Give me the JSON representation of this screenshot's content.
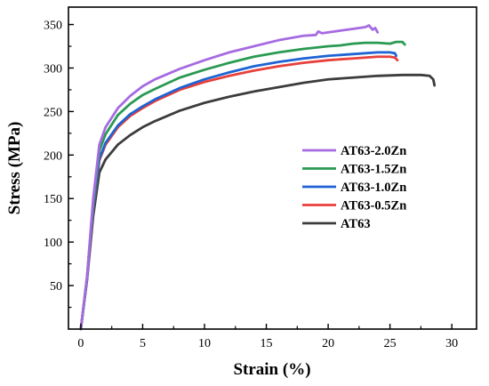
{
  "chart_data": {
    "type": "line",
    "xlabel": "Strain (%)",
    "ylabel": "Stress (MPa)",
    "xlim": [
      -1,
      32
    ],
    "ylim": [
      0,
      370
    ],
    "xticks": [
      0,
      5,
      10,
      15,
      20,
      25,
      30
    ],
    "yticks": [
      50,
      100,
      150,
      200,
      250,
      300,
      350
    ],
    "grid": false,
    "legend_position": "center-right",
    "series": [
      {
        "name": "AT63-2.0Zn",
        "color": "#a66be0",
        "points": [
          [
            0,
            0
          ],
          [
            0.5,
            60
          ],
          [
            1.0,
            150
          ],
          [
            1.5,
            212
          ],
          [
            2,
            232
          ],
          [
            3,
            254
          ],
          [
            4,
            268
          ],
          [
            5,
            279
          ],
          [
            6,
            287
          ],
          [
            8,
            299
          ],
          [
            10,
            309
          ],
          [
            12,
            318
          ],
          [
            14,
            325
          ],
          [
            16,
            332
          ],
          [
            18,
            337
          ],
          [
            19,
            338
          ],
          [
            19.2,
            342
          ],
          [
            19.5,
            340
          ],
          [
            20,
            341
          ],
          [
            21,
            343
          ],
          [
            22,
            345
          ],
          [
            23,
            347
          ],
          [
            23.3,
            349
          ],
          [
            23.6,
            344
          ],
          [
            23.8,
            346
          ],
          [
            24,
            341
          ]
        ]
      },
      {
        "name": "AT63-1.5Zn",
        "color": "#2a9a52",
        "points": [
          [
            0,
            0
          ],
          [
            0.5,
            60
          ],
          [
            1.0,
            145
          ],
          [
            1.5,
            205
          ],
          [
            2,
            224
          ],
          [
            3,
            246
          ],
          [
            4,
            259
          ],
          [
            5,
            269
          ],
          [
            6,
            276
          ],
          [
            8,
            289
          ],
          [
            10,
            298
          ],
          [
            12,
            306
          ],
          [
            14,
            313
          ],
          [
            16,
            318
          ],
          [
            18,
            322
          ],
          [
            20,
            325
          ],
          [
            21,
            326
          ],
          [
            22,
            328
          ],
          [
            23,
            329
          ],
          [
            24,
            329
          ],
          [
            25,
            328
          ],
          [
            25.5,
            330
          ],
          [
            26,
            330
          ],
          [
            26.2,
            327
          ]
        ]
      },
      {
        "name": "AT63-1.0Zn",
        "color": "#1e63d3",
        "points": [
          [
            0,
            0
          ],
          [
            0.5,
            58
          ],
          [
            1.0,
            140
          ],
          [
            1.5,
            196
          ],
          [
            2,
            214
          ],
          [
            3,
            234
          ],
          [
            4,
            247
          ],
          [
            5,
            256
          ],
          [
            6,
            264
          ],
          [
            8,
            277
          ],
          [
            10,
            287
          ],
          [
            12,
            295
          ],
          [
            14,
            302
          ],
          [
            16,
            307
          ],
          [
            18,
            311
          ],
          [
            20,
            314
          ],
          [
            22,
            316
          ],
          [
            24,
            318
          ],
          [
            25,
            318
          ],
          [
            25.4,
            317
          ],
          [
            25.5,
            314
          ]
        ]
      },
      {
        "name": "AT63-0.5Zn",
        "color": "#e8403b",
        "points": [
          [
            0,
            0
          ],
          [
            0.5,
            58
          ],
          [
            1.0,
            138
          ],
          [
            1.5,
            194
          ],
          [
            2,
            212
          ],
          [
            3,
            232
          ],
          [
            4,
            245
          ],
          [
            5,
            254
          ],
          [
            6,
            262
          ],
          [
            8,
            275
          ],
          [
            10,
            284
          ],
          [
            12,
            291
          ],
          [
            14,
            297
          ],
          [
            16,
            302
          ],
          [
            18,
            306
          ],
          [
            20,
            309
          ],
          [
            22,
            311
          ],
          [
            24,
            313
          ],
          [
            25,
            313
          ],
          [
            25.4,
            312
          ],
          [
            25.6,
            309
          ]
        ]
      },
      {
        "name": "AT63",
        "color": "#3c3c3c",
        "points": [
          [
            0,
            0
          ],
          [
            0.5,
            56
          ],
          [
            1.0,
            130
          ],
          [
            1.5,
            180
          ],
          [
            2,
            195
          ],
          [
            3,
            212
          ],
          [
            4,
            223
          ],
          [
            5,
            232
          ],
          [
            6,
            239
          ],
          [
            8,
            251
          ],
          [
            10,
            260
          ],
          [
            12,
            267
          ],
          [
            14,
            273
          ],
          [
            16,
            278
          ],
          [
            18,
            283
          ],
          [
            20,
            287
          ],
          [
            22,
            289
          ],
          [
            24,
            291
          ],
          [
            26,
            292
          ],
          [
            27.5,
            292
          ],
          [
            28.2,
            291
          ],
          [
            28.5,
            287
          ],
          [
            28.6,
            280
          ]
        ]
      }
    ]
  }
}
